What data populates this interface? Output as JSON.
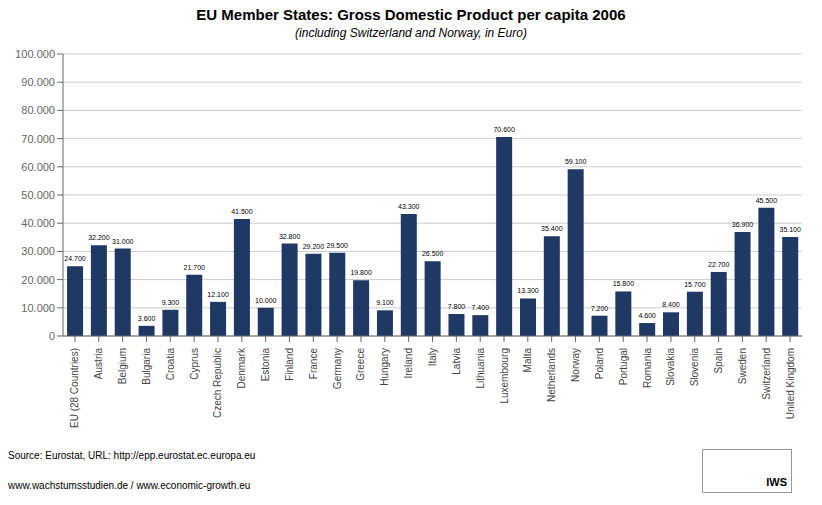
{
  "chart_data": {
    "type": "bar",
    "title": "EU Member States: Gross Domestic Product per capita 2006",
    "subtitle": "(including Switzerland and Norway, in Euro)",
    "categories": [
      "EU (28 Countries)",
      "Austria",
      "Belgium",
      "Bulgaria",
      "Croatia",
      "Cyprus",
      "Czech Republic",
      "Denmark",
      "Estonia",
      "Finland",
      "France",
      "Germany",
      "Greece",
      "Hungary",
      "Ireland",
      "Italy",
      "Latvia",
      "Lithuania",
      "Luxembourg",
      "Malta",
      "Netherlands",
      "Norway",
      "Poland",
      "Portugal",
      "Romania",
      "Slovakia",
      "Slovenia",
      "Spain",
      "Sweden",
      "Switzerland",
      "United Kingdom"
    ],
    "values": [
      24700,
      32200,
      31000,
      3600,
      9300,
      21700,
      12100,
      41500,
      10000,
      32800,
      29200,
      29500,
      19800,
      9100,
      43300,
      26500,
      7800,
      7400,
      70600,
      13300,
      35400,
      59100,
      7200,
      15800,
      4600,
      8400,
      15700,
      22700,
      36900,
      45500,
      35100
    ],
    "value_labels": [
      "24.700",
      "32.200",
      "31.000",
      "3.600",
      "9.300",
      "21.700",
      "12.100",
      "41.500",
      "10.000",
      "32.800",
      "29.200",
      "29.500",
      "19.800",
      "9.100",
      "43.300",
      "26.500",
      "7.800",
      "7.400",
      "70.600",
      "13.300",
      "35.400",
      "59.100",
      "7.200",
      "15.800",
      "4.600",
      "8.400",
      "15.700",
      "22.700",
      "36.900",
      "45.500",
      "35.100"
    ],
    "data_labels": true,
    "color": "#1F3864",
    "ylim": [
      0,
      100000
    ],
    "yticks": [
      0,
      {
        "value": 10000,
        "label": "10.000"
      },
      {
        "value": 20000,
        "label": "20.000"
      },
      {
        "value": 30000,
        "label": "30.000"
      },
      {
        "value": 40000,
        "label": "40.000"
      },
      {
        "value": 50000,
        "label": "50.000"
      },
      {
        "value": 60000,
        "label": "60.000"
      },
      {
        "value": 70000,
        "label": "70.000"
      },
      {
        "value": 80000,
        "label": "80.000"
      },
      {
        "value": 90000,
        "label": "90.000"
      },
      {
        "value": 100000,
        "label": "100.000"
      }
    ],
    "grid": true,
    "annotations": [
      "Source: Eurostat, URL: http://epp.eurostat.ec.europa.eu",
      "www.wachstumsstudien.de  / www.economic-growth.eu",
      "IWS"
    ]
  }
}
